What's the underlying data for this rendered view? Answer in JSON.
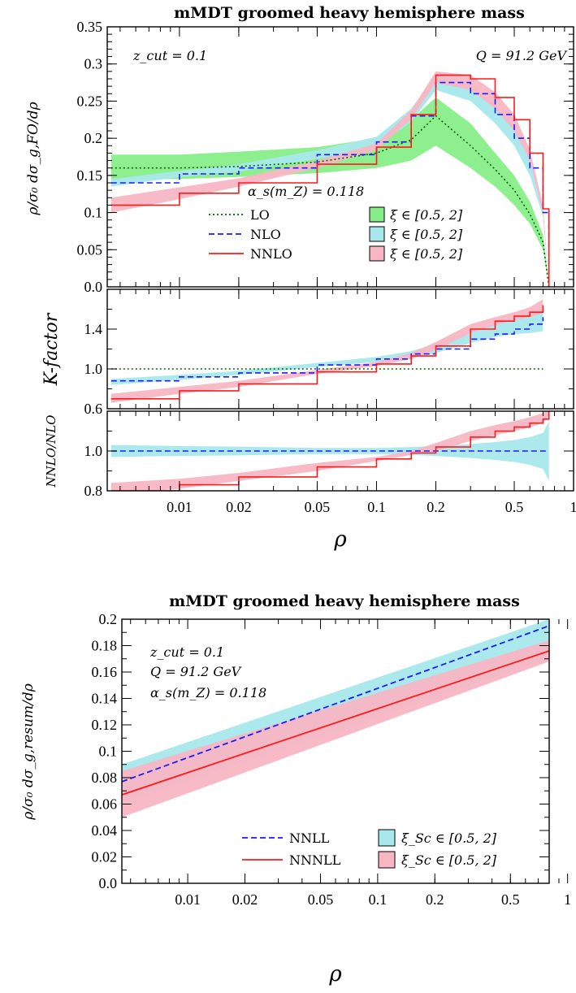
{
  "chart_data": [
    {
      "id": "top",
      "type": "line",
      "title": "mMDT groomed heavy hemisphere mass",
      "xscale": "log",
      "xlabel": "ρ",
      "xticks": [
        0.01,
        0.02,
        0.05,
        0.1,
        0.2,
        0.5,
        1
      ],
      "xtick_labels": [
        "0.01",
        "0.02",
        "0.05",
        "0.1",
        "0.2",
        "0.5",
        "1"
      ],
      "xlim": [
        0.0043,
        1.0
      ],
      "annotations": {
        "zcut": "z_cut = 0.1",
        "Q": "Q = 91.2 GeV",
        "alpha": "α_s(m_Z) = 0.118"
      },
      "legend": {
        "lines": [
          {
            "name": "LO",
            "color": "#006400",
            "style": "dotted"
          },
          {
            "name": "NLO",
            "color": "#1a1aff",
            "style": "dashed"
          },
          {
            "name": "NNLO",
            "color": "#ff1a1a",
            "style": "solid"
          }
        ],
        "bands": [
          {
            "name": "ξ ∈ [0.5, 2]",
            "color": "#88ee88"
          },
          {
            "name": "ξ ∈ [0.5, 2]",
            "color": "#a8e8ec"
          },
          {
            "name": "ξ ∈ [0.5, 2]",
            "color": "#f8b6c4"
          }
        ]
      },
      "panels": [
        {
          "name": "main",
          "ylabel": "ρ/σ₀ dσ_g,FO/dρ",
          "ylim": [
            0,
            0.35
          ],
          "yticks": [
            0,
            0.05,
            0.1,
            0.15,
            0.2,
            0.25,
            0.3,
            0.35
          ],
          "ytick_labels": [
            "0.0",
            "0.05",
            "0.1",
            "0.15",
            "0.2",
            "0.25",
            "0.3",
            "0.35"
          ],
          "x": [
            0.0045,
            0.01,
            0.02,
            0.05,
            0.1,
            0.15,
            0.2,
            0.3,
            0.4,
            0.5,
            0.6,
            0.7,
            0.75
          ],
          "series": [
            {
              "name": "LO",
              "values": [
                0.16,
                0.16,
                0.162,
                0.168,
                0.18,
                0.198,
                0.23,
                0.19,
                0.158,
                0.13,
                0.098,
                0.06,
                0.0
              ],
              "band_lo": [
                0.145,
                0.145,
                0.148,
                0.153,
                0.16,
                0.17,
                0.19,
                0.16,
                0.135,
                0.11,
                0.085,
                0.05,
                0.0
              ],
              "band_hi": [
                0.178,
                0.178,
                0.182,
                0.188,
                0.2,
                0.225,
                0.255,
                0.22,
                0.18,
                0.15,
                0.115,
                0.07,
                0.0
              ]
            },
            {
              "name": "NLO",
              "values": [
                0.14,
                0.152,
                0.16,
                0.178,
                0.195,
                0.23,
                0.275,
                0.26,
                0.232,
                0.2,
                0.16,
                0.1,
                0.0
              ],
              "band_lo": [
                0.135,
                0.148,
                0.155,
                0.172,
                0.188,
                0.222,
                0.265,
                0.25,
                0.22,
                0.19,
                0.15,
                0.095,
                0.0
              ],
              "band_hi": [
                0.145,
                0.156,
                0.165,
                0.184,
                0.202,
                0.24,
                0.285,
                0.272,
                0.245,
                0.215,
                0.17,
                0.105,
                0.0
              ]
            },
            {
              "name": "NNLO",
              "values": [
                0.11,
                0.126,
                0.14,
                0.165,
                0.188,
                0.232,
                0.285,
                0.28,
                0.255,
                0.225,
                0.18,
                0.105,
                0.0
              ],
              "band_lo": [
                0.1,
                0.118,
                0.135,
                0.16,
                0.184,
                0.226,
                0.275,
                0.265,
                0.24,
                0.21,
                0.17,
                0.1,
                0.0
              ],
              "band_hi": [
                0.12,
                0.134,
                0.146,
                0.17,
                0.193,
                0.238,
                0.29,
                0.285,
                0.262,
                0.232,
                0.185,
                0.11,
                0.0
              ]
            }
          ]
        },
        {
          "name": "kfactor",
          "ylabel": "K-factor",
          "ylim": [
            0.6,
            1.8
          ],
          "yticks": [
            0.6,
            1.0,
            1.4
          ],
          "ytick_labels": [
            "0.6",
            "1.0",
            "1.4"
          ],
          "x": [
            0.0045,
            0.01,
            0.02,
            0.05,
            0.1,
            0.15,
            0.2,
            0.3,
            0.4,
            0.5,
            0.6,
            0.7
          ],
          "series": [
            {
              "name": "LO",
              "values": [
                1.0,
                1.0,
                1.0,
                1.0,
                1.0,
                1.0,
                1.0,
                1.0,
                1.0,
                1.0,
                1.0,
                1.0
              ]
            },
            {
              "name": "NLO",
              "values": [
                0.88,
                0.92,
                0.96,
                1.04,
                1.1,
                1.15,
                1.2,
                1.3,
                1.35,
                1.4,
                1.45,
                1.52
              ],
              "band_lo": [
                0.84,
                0.89,
                0.94,
                1.02,
                1.07,
                1.12,
                1.16,
                1.26,
                1.32,
                1.35,
                1.36,
                1.38
              ],
              "band_hi": [
                0.9,
                0.94,
                0.98,
                1.06,
                1.12,
                1.18,
                1.25,
                1.38,
                1.45,
                1.52,
                1.56,
                1.62
              ]
            },
            {
              "name": "NNLO",
              "values": [
                0.7,
                0.78,
                0.85,
                0.97,
                1.05,
                1.13,
                1.23,
                1.4,
                1.48,
                1.53,
                1.57,
                1.64
              ],
              "band_lo": [
                0.66,
                0.75,
                0.82,
                0.95,
                1.03,
                1.1,
                1.19,
                1.36,
                1.44,
                1.49,
                1.52,
                1.56
              ],
              "band_hi": [
                0.75,
                0.82,
                0.88,
                0.99,
                1.07,
                1.16,
                1.27,
                1.45,
                1.52,
                1.57,
                1.62,
                1.7
              ]
            }
          ]
        },
        {
          "name": "ratio",
          "ylabel": "NNLO/NLO",
          "ylim": [
            0.8,
            1.2
          ],
          "yticks": [
            0.8,
            1.0
          ],
          "ytick_labels": [
            "0.8",
            "1.0"
          ],
          "x": [
            0.0045,
            0.01,
            0.02,
            0.05,
            0.1,
            0.15,
            0.2,
            0.3,
            0.4,
            0.5,
            0.6,
            0.7,
            0.75
          ],
          "series": [
            {
              "name": "NLO",
              "values": [
                1.0,
                1.0,
                1.0,
                1.0,
                1.0,
                1.0,
                1.0,
                1.0,
                1.0,
                1.0,
                1.0,
                1.0,
                1.0
              ],
              "band_lo": [
                0.97,
                0.975,
                0.978,
                0.985,
                0.985,
                0.98,
                0.975,
                0.965,
                0.955,
                0.945,
                0.93,
                0.91,
                0.85
              ],
              "band_hi": [
                1.03,
                1.025,
                1.022,
                1.015,
                1.015,
                1.02,
                1.025,
                1.035,
                1.045,
                1.055,
                1.07,
                1.09,
                1.15
              ]
            },
            {
              "name": "NNLO",
              "values": [
                0.8,
                0.83,
                0.87,
                0.92,
                0.96,
                0.99,
                1.02,
                1.07,
                1.1,
                1.12,
                1.14,
                1.16,
                1.2
              ],
              "band_lo": [
                0.78,
                0.81,
                0.85,
                0.9,
                0.95,
                0.98,
                1.0,
                1.05,
                1.08,
                1.1,
                1.12,
                1.14,
                1.18
              ],
              "band_hi": [
                0.84,
                0.86,
                0.89,
                0.94,
                0.97,
                1.0,
                1.04,
                1.1,
                1.13,
                1.15,
                1.17,
                1.19,
                1.22
              ]
            }
          ]
        }
      ]
    },
    {
      "id": "bottom",
      "type": "line",
      "title": "mMDT groomed heavy hemisphere mass",
      "xscale": "log",
      "xlabel": "ρ",
      "ylabel": "ρ/σ₀ dσ_g,resum/dρ",
      "xlim": [
        0.0045,
        0.8
      ],
      "ylim": [
        0,
        0.2
      ],
      "xticks": [
        0.01,
        0.02,
        0.05,
        0.1,
        0.2,
        0.5,
        1
      ],
      "xtick_labels": [
        "0.01",
        "0.02",
        "0.05",
        "0.1",
        "0.2",
        "0.5",
        "1"
      ],
      "yticks": [
        0,
        0.02,
        0.04,
        0.06,
        0.08,
        0.1,
        0.12,
        0.14,
        0.16,
        0.18,
        0.2
      ],
      "ytick_labels": [
        "0.0",
        "0.02",
        "0.04",
        "0.06",
        "0.08",
        "0.1",
        "0.12",
        "0.14",
        "0.16",
        "0.18",
        "0.2"
      ],
      "annotations": {
        "zcut": "z_cut = 0.1",
        "Q": "Q = 91.2 GeV",
        "alpha": "α_s(m_Z) = 0.118"
      },
      "x": [
        0.0045,
        0.8
      ],
      "series": [
        {
          "name": "NNLL",
          "color": "#1a1aff",
          "style": "dashed",
          "values": [
            0.077,
            0.195
          ],
          "band_lo": [
            0.061,
            0.17
          ],
          "band_hi": [
            0.09,
            0.2
          ],
          "band_color": "#a8e8ec",
          "band_label": "ξ_Sc ∈ [0.5, 2]"
        },
        {
          "name": "NNNLL",
          "color": "#ff1a1a",
          "style": "solid",
          "values": [
            0.067,
            0.176
          ],
          "band_lo": [
            0.05,
            0.168
          ],
          "band_hi": [
            0.085,
            0.184
          ],
          "band_color": "#f8b6c4",
          "band_label": "ξ_Sc ∈ [0.5, 2]"
        }
      ]
    }
  ]
}
